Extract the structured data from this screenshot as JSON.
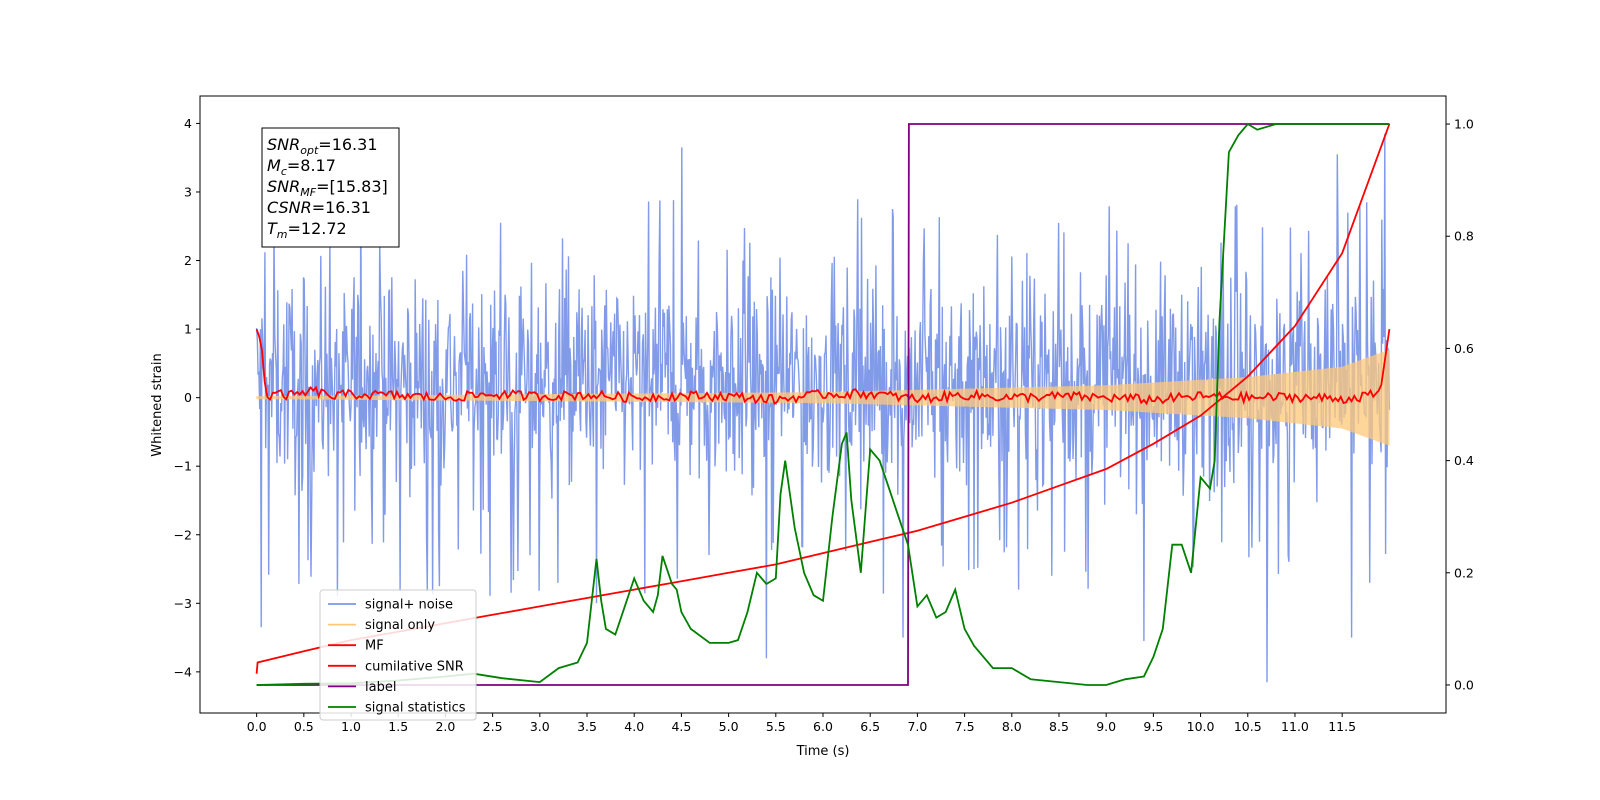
{
  "chart_data": {
    "type": "line",
    "xlabel": "Time (s)",
    "ylabel": "Whitened strain",
    "xlim": [
      -0.6,
      12.6
    ],
    "ylim": [
      -4.6,
      4.4
    ],
    "y2lim": [
      -0.05,
      1.05
    ],
    "xticks": [
      "0.0",
      "0.5",
      "1.0",
      "1.5",
      "2.0",
      "2.5",
      "3.0",
      "3.5",
      "4.0",
      "4.5",
      "5.0",
      "5.5",
      "6.0",
      "6.5",
      "7.0",
      "7.5",
      "8.0",
      "8.5",
      "9.0",
      "9.5",
      "10.0",
      "10.5",
      "11.0",
      "11.5"
    ],
    "yticks_left": [
      "4",
      "3",
      "2",
      "1",
      "0",
      "−1",
      "−2",
      "−3",
      "−4"
    ],
    "yticks_right": [
      "1.0",
      "0.8",
      "0.6",
      "0.4",
      "0.2",
      "0.0"
    ],
    "annotation": [
      {
        "base": "SNR",
        "sub": "opt",
        "value": "=16.31"
      },
      {
        "base": "M",
        "sub": "c",
        "value": "=8.17"
      },
      {
        "base": "SNR",
        "sub": "MF",
        "value": "=[15.83]"
      },
      {
        "base": "CSNR",
        "sub": "",
        "value": "=16.31"
      },
      {
        "base": "T",
        "sub": "m",
        "value": "=12.72"
      }
    ],
    "legend": {
      "placement": "lower-left",
      "entries": [
        {
          "label": "signal+ noise",
          "color": "#7b96e8"
        },
        {
          "label": "signal only",
          "color": "#ffc878"
        },
        {
          "label": "MF",
          "color": "#ff0000"
        },
        {
          "label": "cumilative SNR",
          "color": "#ff0000"
        },
        {
          "label": "label",
          "color": "#800080"
        },
        {
          "label": "signal statistics",
          "color": "#008000"
        }
      ]
    },
    "series": [
      {
        "name": "signal+ noise",
        "axis": "left",
        "color": "#7b96e8",
        "x_range": [
          0,
          12.0
        ],
        "envelope_hi": [
          2.3,
          2.6,
          2.4,
          2.5,
          3.2
        ],
        "envelope_lo": [
          -1.8,
          -2.5,
          -2.3,
          -2.2,
          -2.0
        ],
        "spikes": [
          [
            0.05,
            -3.35
          ],
          [
            1.1,
            3.2
          ],
          [
            3.6,
            -3.0
          ],
          [
            4.5,
            3.65
          ],
          [
            5.4,
            -3.8
          ],
          [
            6.85,
            -3.5
          ],
          [
            9.4,
            -3.55
          ],
          [
            10.7,
            -4.15
          ],
          [
            11.45,
            3.55
          ],
          [
            11.6,
            -3.5
          ],
          [
            11.95,
            3.85
          ]
        ]
      },
      {
        "name": "signal only",
        "axis": "left",
        "color": "#ffc878",
        "x_range": [
          0,
          12.0
        ],
        "amplitude": [
          [
            0,
            0.02
          ],
          [
            6,
            0.08
          ],
          [
            9,
            0.18
          ],
          [
            10.5,
            0.3
          ],
          [
            11.5,
            0.45
          ],
          [
            12.0,
            0.7
          ]
        ]
      },
      {
        "name": "MF",
        "axis": "left",
        "color": "#ff0000",
        "x": [
          0,
          0.05,
          0.1,
          0.2,
          0.4,
          0.6,
          0.8,
          1.0,
          1.5,
          2.0,
          2.5,
          3.0,
          3.5,
          4.0,
          4.5,
          5.0,
          5.5,
          6.0,
          6.5,
          7.0,
          7.5,
          8.0,
          8.5,
          9.0,
          9.5,
          10.0,
          10.5,
          11.0,
          11.5,
          11.9,
          12.0
        ],
        "y": [
          1.0,
          0.8,
          0.0,
          0.05,
          0.03,
          0.1,
          0.02,
          0.05,
          0.03,
          0.0,
          0.05,
          0.02,
          0.04,
          0.0,
          0.03,
          0.02,
          -0.03,
          0.05,
          0.06,
          -0.02,
          0.04,
          0.0,
          0.02,
          0.0,
          -0.03,
          0.02,
          0.0,
          0.01,
          -0.02,
          0.05,
          1.0
        ]
      },
      {
        "name": "cumilative SNR",
        "axis": "right",
        "color": "#ff0000",
        "x": [
          0,
          0.01,
          0.5,
          1.0,
          1.5,
          2.0,
          2.5,
          3.0,
          3.5,
          4.0,
          4.5,
          5.0,
          5.5,
          6.0,
          6.5,
          7.0,
          7.5,
          8.0,
          8.5,
          9.0,
          9.5,
          10.0,
          10.5,
          11.0,
          11.5,
          12.0
        ],
        "y": [
          0.02,
          0.04,
          0.06,
          0.08,
          0.095,
          0.11,
          0.125,
          0.14,
          0.155,
          0.17,
          0.185,
          0.2,
          0.215,
          0.235,
          0.255,
          0.275,
          0.3,
          0.325,
          0.355,
          0.385,
          0.43,
          0.48,
          0.55,
          0.64,
          0.77,
          1.0
        ]
      },
      {
        "name": "label",
        "axis": "right",
        "color": "#800080",
        "x": [
          0,
          6.9,
          6.91,
          12.0
        ],
        "y": [
          0,
          0,
          1,
          1
        ]
      },
      {
        "name": "signal statistics",
        "axis": "right",
        "color": "#008000",
        "x": [
          0,
          0.5,
          1.0,
          1.5,
          2.0,
          2.3,
          2.6,
          3.0,
          3.2,
          3.4,
          3.5,
          3.6,
          3.65,
          3.7,
          3.8,
          3.9,
          4.0,
          4.1,
          4.2,
          4.25,
          4.3,
          4.4,
          4.45,
          4.5,
          4.6,
          4.8,
          5.0,
          5.1,
          5.2,
          5.3,
          5.4,
          5.5,
          5.55,
          5.6,
          5.7,
          5.8,
          5.9,
          6.0,
          6.1,
          6.2,
          6.25,
          6.3,
          6.4,
          6.5,
          6.6,
          6.7,
          6.8,
          6.9,
          7.0,
          7.1,
          7.2,
          7.3,
          7.4,
          7.5,
          7.6,
          7.8,
          8.0,
          8.2,
          8.5,
          8.8,
          9.0,
          9.2,
          9.4,
          9.5,
          9.6,
          9.7,
          9.8,
          9.9,
          10.0,
          10.1,
          10.15,
          10.2,
          10.3,
          10.4,
          10.5,
          10.6,
          10.8,
          11.0,
          11.5,
          12.0
        ],
        "y": [
          0,
          0.002,
          0.003,
          0.008,
          0.015,
          0.02,
          0.012,
          0.005,
          0.03,
          0.04,
          0.075,
          0.225,
          0.15,
          0.1,
          0.09,
          0.14,
          0.19,
          0.15,
          0.13,
          0.16,
          0.23,
          0.18,
          0.17,
          0.13,
          0.1,
          0.075,
          0.075,
          0.08,
          0.13,
          0.2,
          0.18,
          0.19,
          0.34,
          0.4,
          0.28,
          0.2,
          0.16,
          0.15,
          0.3,
          0.43,
          0.45,
          0.33,
          0.2,
          0.42,
          0.4,
          0.35,
          0.3,
          0.25,
          0.14,
          0.16,
          0.12,
          0.13,
          0.17,
          0.1,
          0.07,
          0.03,
          0.03,
          0.01,
          0.005,
          0.0,
          0.0,
          0.01,
          0.015,
          0.05,
          0.1,
          0.25,
          0.25,
          0.2,
          0.37,
          0.35,
          0.4,
          0.65,
          0.95,
          0.98,
          1.0,
          0.99,
          1.0,
          1.0,
          1.0,
          1.0
        ]
      }
    ]
  }
}
